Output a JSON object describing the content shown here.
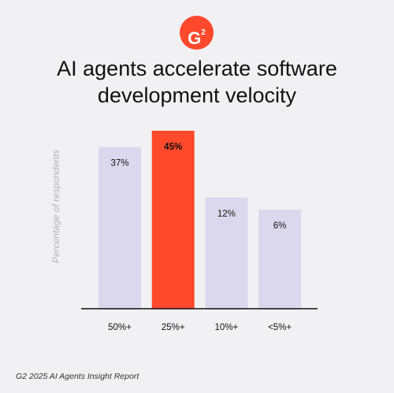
{
  "logo": {
    "text": "G",
    "superscript": "2"
  },
  "chart_data": {
    "type": "bar",
    "title": "AI agents accelerate software development velocity",
    "title_lines": [
      "AI agents accelerate software",
      "development velocity"
    ],
    "xlabel": "",
    "ylabel": "Percentage of respondents",
    "categories": [
      "50%+",
      "25%+",
      "10%+",
      "<5%+"
    ],
    "values": [
      37,
      45,
      12,
      6
    ],
    "labels": [
      "37%",
      "45%",
      "12%",
      "6%"
    ],
    "highlight_index": 1,
    "ylim": [
      -43,
      45
    ],
    "grid": false,
    "bar_color": "#dbd8ee",
    "highlight_color": "#ff492c"
  },
  "footer": {
    "source": "G2 2025 AI Agents Insight Report"
  }
}
